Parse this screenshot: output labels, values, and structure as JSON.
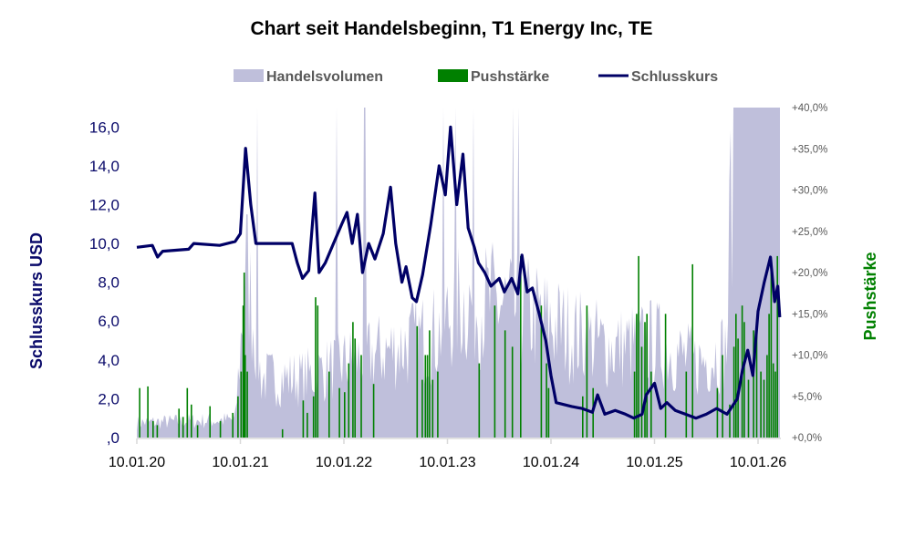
{
  "chart_data": {
    "type": "line",
    "title": "Chart seit Handelsbeginn, T1 Energy Inc, TE",
    "legend": [
      "Handelsvolumen",
      "Pushstärke",
      "Schlusskurs"
    ],
    "legend_placement": "top-center",
    "ylabel_left": "Schlusskurs USD",
    "ylabel_right": "Pushstärke",
    "ylim_left": [
      0,
      17
    ],
    "ylim_right": [
      0,
      40
    ],
    "left_ticks": [
      ",0",
      "2,0",
      "4,0",
      "6,0",
      "8,0",
      "10,0",
      "12,0",
      "14,0",
      "16,0"
    ],
    "right_ticks": [
      "+0,0%",
      "+5,0%",
      "+10,0%",
      "+15,0%",
      "+20,0%",
      "+25,0%",
      "+30,0%",
      "+35,0%",
      "+40,0%"
    ],
    "x_ticks": [
      "10.01.20",
      "10.01.21",
      "10.01.22",
      "10.01.23",
      "10.01.24",
      "10.01.25",
      "10.01.26"
    ],
    "x_unit": "years since 10.01.20",
    "xlim": [
      0,
      6.21
    ],
    "colors": {
      "volume": "#bfbfdb",
      "push": "#008000",
      "price": "#000066",
      "left_axis": "#0a0a6a",
      "right_label": "#008000"
    },
    "price": [
      [
        0,
        9.8
      ],
      [
        0.15,
        9.9
      ],
      [
        0.2,
        9.3
      ],
      [
        0.25,
        9.6
      ],
      [
        0.5,
        9.7
      ],
      [
        0.55,
        10.0
      ],
      [
        0.8,
        9.9
      ],
      [
        0.95,
        10.1
      ],
      [
        1.0,
        10.5
      ],
      [
        1.05,
        14.9
      ],
      [
        1.1,
        12.0
      ],
      [
        1.15,
        10.0
      ],
      [
        1.3,
        10.0
      ],
      [
        1.5,
        10.0
      ],
      [
        1.55,
        9.0
      ],
      [
        1.6,
        8.2
      ],
      [
        1.66,
        8.6
      ],
      [
        1.72,
        12.6
      ],
      [
        1.76,
        8.5
      ],
      [
        1.82,
        9.0
      ],
      [
        1.9,
        10.0
      ],
      [
        1.98,
        11.0
      ],
      [
        2.03,
        11.6
      ],
      [
        2.08,
        10.0
      ],
      [
        2.13,
        11.5
      ],
      [
        2.18,
        8.5
      ],
      [
        2.24,
        10.0
      ],
      [
        2.3,
        9.2
      ],
      [
        2.38,
        10.5
      ],
      [
        2.45,
        12.9
      ],
      [
        2.5,
        10.0
      ],
      [
        2.56,
        8.0
      ],
      [
        2.6,
        8.8
      ],
      [
        2.66,
        7.2
      ],
      [
        2.7,
        7.0
      ],
      [
        2.76,
        8.4
      ],
      [
        2.84,
        11.0
      ],
      [
        2.92,
        14.0
      ],
      [
        2.98,
        12.5
      ],
      [
        3.03,
        16.0
      ],
      [
        3.09,
        12.0
      ],
      [
        3.15,
        14.6
      ],
      [
        3.2,
        10.8
      ],
      [
        3.26,
        9.8
      ],
      [
        3.3,
        9.0
      ],
      [
        3.36,
        8.5
      ],
      [
        3.42,
        7.8
      ],
      [
        3.5,
        8.2
      ],
      [
        3.55,
        7.5
      ],
      [
        3.62,
        8.2
      ],
      [
        3.68,
        7.4
      ],
      [
        3.72,
        9.4
      ],
      [
        3.77,
        7.5
      ],
      [
        3.82,
        7.7
      ],
      [
        3.88,
        6.5
      ],
      [
        3.95,
        5.0
      ],
      [
        4.0,
        3.2
      ],
      [
        4.05,
        1.8
      ],
      [
        4.2,
        1.6
      ],
      [
        4.3,
        1.5
      ],
      [
        4.4,
        1.3
      ],
      [
        4.45,
        2.2
      ],
      [
        4.52,
        1.2
      ],
      [
        4.62,
        1.4
      ],
      [
        4.72,
        1.2
      ],
      [
        4.8,
        1.0
      ],
      [
        4.88,
        1.2
      ],
      [
        4.92,
        2.2
      ],
      [
        5.0,
        2.8
      ],
      [
        5.06,
        1.5
      ],
      [
        5.12,
        1.8
      ],
      [
        5.2,
        1.4
      ],
      [
        5.3,
        1.2
      ],
      [
        5.4,
        1.0
      ],
      [
        5.5,
        1.2
      ],
      [
        5.6,
        1.5
      ],
      [
        5.7,
        1.2
      ],
      [
        5.8,
        2.0
      ],
      [
        5.85,
        3.5
      ],
      [
        5.9,
        4.5
      ],
      [
        5.95,
        3.2
      ],
      [
        6.0,
        6.5
      ],
      [
        6.06,
        8.0
      ],
      [
        6.12,
        9.3
      ],
      [
        6.16,
        7.0
      ],
      [
        6.19,
        7.8
      ],
      [
        6.21,
        6.2
      ]
    ],
    "volume_relative": [
      [
        0,
        0.05
      ],
      [
        0.95,
        0.06
      ],
      [
        1.0,
        0.3
      ],
      [
        1.05,
        0.6
      ],
      [
        1.2,
        0.2
      ],
      [
        1.6,
        0.2
      ],
      [
        2.0,
        0.25
      ],
      [
        2.5,
        0.3
      ],
      [
        2.9,
        0.35
      ],
      [
        3.1,
        0.45
      ],
      [
        3.5,
        0.45
      ],
      [
        3.9,
        0.4
      ],
      [
        4.2,
        0.35
      ],
      [
        4.6,
        0.3
      ],
      [
        5.0,
        0.32
      ],
      [
        5.4,
        0.25
      ],
      [
        5.7,
        0.3
      ],
      [
        5.75,
        1.0
      ],
      [
        6.21,
        1.0
      ]
    ],
    "push_pct": [
      [
        0.02,
        6
      ],
      [
        0.1,
        6.2
      ],
      [
        0.15,
        2
      ],
      [
        0.19,
        1.5
      ],
      [
        0.4,
        3.5
      ],
      [
        0.44,
        2.5
      ],
      [
        0.48,
        6
      ],
      [
        0.52,
        4
      ],
      [
        0.58,
        1.5
      ],
      [
        0.7,
        3.8
      ],
      [
        0.8,
        2
      ],
      [
        0.92,
        3
      ],
      [
        0.97,
        5
      ],
      [
        1.0,
        8
      ],
      [
        1.02,
        16
      ],
      [
        1.03,
        20
      ],
      [
        1.04,
        10
      ],
      [
        1.06,
        8
      ],
      [
        1.4,
        1
      ],
      [
        1.6,
        4.5
      ],
      [
        1.64,
        3
      ],
      [
        1.7,
        5
      ],
      [
        1.72,
        17
      ],
      [
        1.74,
        16
      ],
      [
        1.85,
        8
      ],
      [
        1.95,
        6
      ],
      [
        2.0,
        5.5
      ],
      [
        2.04,
        9
      ],
      [
        2.08,
        14
      ],
      [
        2.1,
        12
      ],
      [
        2.16,
        10
      ],
      [
        2.28,
        6.5
      ],
      [
        2.7,
        13.5
      ],
      [
        2.75,
        7
      ],
      [
        2.78,
        10
      ],
      [
        2.8,
        10
      ],
      [
        2.82,
        13
      ],
      [
        2.85,
        7
      ],
      [
        2.9,
        8
      ],
      [
        3.3,
        9
      ],
      [
        3.45,
        16
      ],
      [
        3.55,
        13
      ],
      [
        3.62,
        11
      ],
      [
        3.7,
        22
      ],
      [
        3.9,
        16
      ],
      [
        3.95,
        9
      ],
      [
        3.97,
        6
      ],
      [
        4.3,
        5
      ],
      [
        4.34,
        16
      ],
      [
        4.4,
        6
      ],
      [
        4.8,
        8
      ],
      [
        4.82,
        15
      ],
      [
        4.84,
        22
      ],
      [
        4.87,
        11
      ],
      [
        4.9,
        14
      ],
      [
        4.92,
        15
      ],
      [
        4.96,
        8
      ],
      [
        5.1,
        15
      ],
      [
        5.3,
        8
      ],
      [
        5.36,
        21
      ],
      [
        5.6,
        6
      ],
      [
        5.65,
        10
      ],
      [
        5.72,
        4
      ],
      [
        5.76,
        11
      ],
      [
        5.78,
        15
      ],
      [
        5.8,
        12
      ],
      [
        5.84,
        16
      ],
      [
        5.86,
        14
      ],
      [
        5.9,
        7
      ],
      [
        5.95,
        13
      ],
      [
        5.98,
        14
      ],
      [
        6.02,
        8
      ],
      [
        6.05,
        7
      ],
      [
        6.08,
        10
      ],
      [
        6.1,
        15
      ],
      [
        6.12,
        21
      ],
      [
        6.14,
        9
      ],
      [
        6.16,
        8
      ],
      [
        6.18,
        22
      ]
    ]
  }
}
